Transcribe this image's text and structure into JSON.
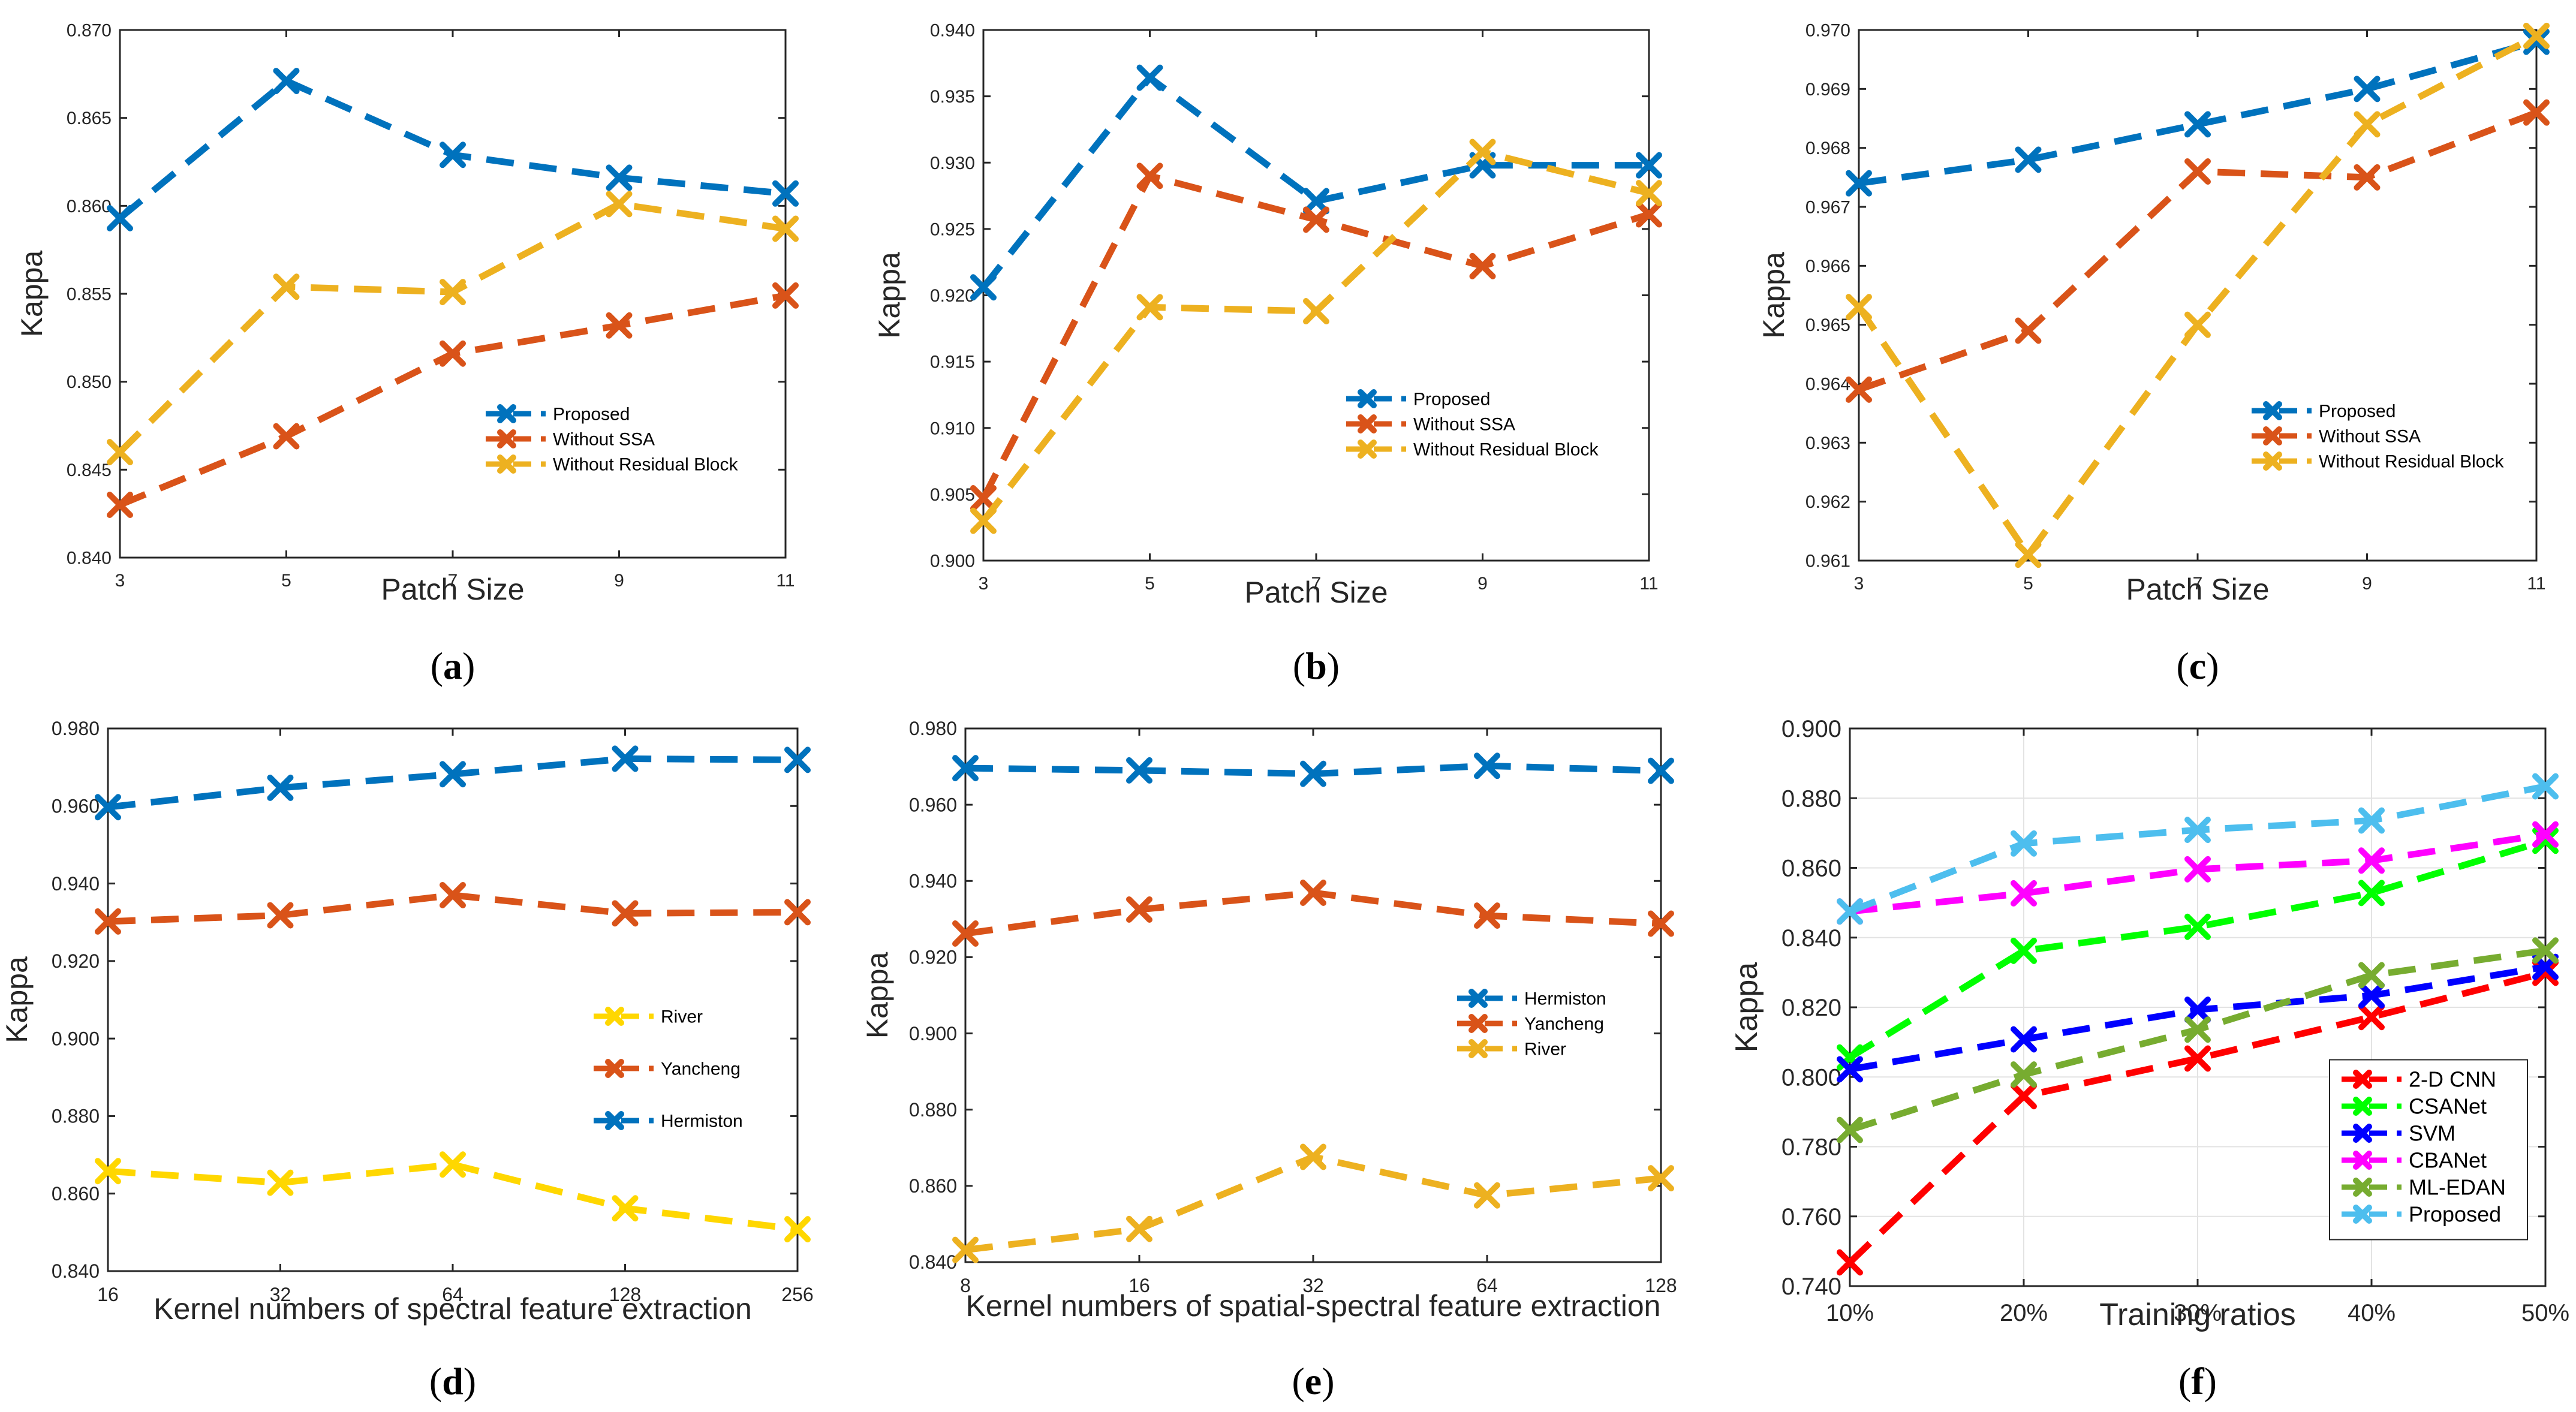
{
  "chart_data": [
    {
      "id": "a",
      "type": "line",
      "panel_label": "(a)",
      "panel_letter": "a",
      "xlabel": "Patch Size",
      "ylabel": "Kappa",
      "categories": [
        "3",
        "5",
        "7",
        "9",
        "11"
      ],
      "ylim": [
        0.84,
        0.87
      ],
      "yticks": [
        "0.840",
        "0.845",
        "0.850",
        "0.855",
        "0.860",
        "0.865",
        "0.870"
      ],
      "legend_position": "lower-right",
      "series": [
        {
          "name": "Proposed",
          "color": "#0072BD",
          "values": [
            0.8593,
            0.8671,
            0.8629,
            0.8616,
            0.8607
          ]
        },
        {
          "name": "Without SSA",
          "color": "#D95319",
          "values": [
            0.843,
            0.8469,
            0.8516,
            0.8532,
            0.8549
          ]
        },
        {
          "name": "Without Residual Block",
          "color": "#EDB120",
          "values": [
            0.846,
            0.8554,
            0.8551,
            0.8601,
            0.8587
          ]
        }
      ]
    },
    {
      "id": "b",
      "type": "line",
      "panel_label": "(b)",
      "panel_letter": "b",
      "xlabel": "Patch Size",
      "ylabel": "Kappa",
      "categories": [
        "3",
        "5",
        "7",
        "9",
        "11"
      ],
      "ylim": [
        0.9,
        0.94
      ],
      "yticks": [
        "0.900",
        "0.905",
        "0.910",
        "0.915",
        "0.920",
        "0.925",
        "0.930",
        "0.935",
        "0.940"
      ],
      "legend_position": "lower-right",
      "series": [
        {
          "name": "Proposed",
          "color": "#0072BD",
          "values": [
            0.9206,
            0.9364,
            0.9271,
            0.9298,
            0.9298
          ]
        },
        {
          "name": "Without SSA",
          "color": "#D95319",
          "values": [
            0.9047,
            0.929,
            0.9257,
            0.9222,
            0.9261
          ]
        },
        {
          "name": "Without Residual Block",
          "color": "#EDB120",
          "values": [
            0.903,
            0.9191,
            0.9188,
            0.9308,
            0.9277
          ]
        }
      ]
    },
    {
      "id": "c",
      "type": "line",
      "panel_label": "(c)",
      "panel_letter": "c",
      "xlabel": "Patch Size",
      "ylabel": "Kappa",
      "categories": [
        "3",
        "5",
        "7",
        "9",
        "11"
      ],
      "ylim": [
        0.961,
        0.97
      ],
      "yticks": [
        "0.961",
        "0.962",
        "0.963",
        "0.964",
        "0.965",
        "0.966",
        "0.967",
        "0.968",
        "0.969",
        "0.970"
      ],
      "legend_position": "lower-right",
      "series": [
        {
          "name": "Proposed",
          "color": "#0072BD",
          "values": [
            0.9674,
            0.9678,
            0.9684,
            0.969,
            0.9698
          ]
        },
        {
          "name": "Without SSA",
          "color": "#D95319",
          "values": [
            0.9639,
            0.9649,
            0.9676,
            0.9675,
            0.9686
          ]
        },
        {
          "name": "Without Residual Block",
          "color": "#EDB120",
          "values": [
            0.9653,
            0.9611,
            0.965,
            0.9684,
            0.9699
          ]
        }
      ]
    },
    {
      "id": "d",
      "type": "line",
      "panel_label": "(d)",
      "panel_letter": "d",
      "xlabel": "Kernel numbers of spectral feature extraction",
      "ylabel": "Kappa",
      "categories": [
        "16",
        "32",
        "64",
        "128",
        "256"
      ],
      "ylim": [
        0.84,
        0.98
      ],
      "yticks": [
        "0.840",
        "0.860",
        "0.880",
        "0.900",
        "0.920",
        "0.940",
        "0.960",
        "0.980"
      ],
      "legend_position": "lower-right",
      "series": [
        {
          "name": "River",
          "color": "#FFD700",
          "values": [
            0.8658,
            0.8628,
            0.8675,
            0.8562,
            0.8508
          ]
        },
        {
          "name": "Yancheng",
          "color": "#D95319",
          "values": [
            0.9302,
            0.9318,
            0.937,
            0.9323,
            0.9326
          ]
        },
        {
          "name": "Hermiston",
          "color": "#0072BD",
          "values": [
            0.9597,
            0.9647,
            0.9682,
            0.9722,
            0.9719
          ]
        }
      ]
    },
    {
      "id": "e",
      "type": "line",
      "panel_label": "(e)",
      "panel_letter": "e",
      "xlabel": "Kernel numbers of spatial-spectral feature extraction",
      "ylabel": "Kappa",
      "categories": [
        "8",
        "16",
        "32",
        "64",
        "128"
      ],
      "ylim": [
        0.84,
        0.98
      ],
      "yticks": [
        "0.840",
        "0.860",
        "0.880",
        "0.900",
        "0.920",
        "0.940",
        "0.960",
        "0.980"
      ],
      "legend_position": "center-right",
      "series": [
        {
          "name": "Hermiston",
          "color": "#0072BD",
          "values": [
            0.9696,
            0.969,
            0.9681,
            0.9702,
            0.9689
          ]
        },
        {
          "name": "Yancheng",
          "color": "#D95319",
          "values": [
            0.9262,
            0.9325,
            0.9369,
            0.9309,
            0.9288
          ]
        },
        {
          "name": "River",
          "color": "#EDB120",
          "values": [
            0.8432,
            0.8487,
            0.8676,
            0.8575,
            0.862
          ]
        }
      ]
    },
    {
      "id": "f",
      "type": "line",
      "panel_label": "(f)",
      "panel_letter": "f",
      "xlabel": "Training ratios",
      "ylabel": "Kappa",
      "categories": [
        "10%",
        "20%",
        "30%",
        "40%",
        "50%"
      ],
      "ylim": [
        0.74,
        0.9
      ],
      "yticks": [
        "0.740",
        "0.760",
        "0.780",
        "0.800",
        "0.820",
        "0.840",
        "0.860",
        "0.880",
        "0.900"
      ],
      "grid": true,
      "legend_position": "lower-right",
      "series": [
        {
          "name": "2-D CNN",
          "color": "#FF0000",
          "values": [
            0.7468,
            0.7945,
            0.8053,
            0.8172,
            0.8299
          ]
        },
        {
          "name": "CSANet",
          "color": "#00FF00",
          "values": [
            0.8056,
            0.8362,
            0.8431,
            0.8528,
            0.8678
          ]
        },
        {
          "name": "SVM",
          "color": "#0000FF",
          "values": [
            0.8022,
            0.8108,
            0.8193,
            0.8234,
            0.8316
          ]
        },
        {
          "name": "CBANet",
          "color": "#FF00FF",
          "values": [
            0.8475,
            0.8527,
            0.8596,
            0.8621,
            0.8696
          ]
        },
        {
          "name": "ML-EDAN",
          "color": "#77AC30",
          "values": [
            0.7848,
            0.8007,
            0.8136,
            0.8292,
            0.8363
          ]
        },
        {
          "name": "Proposed",
          "color": "#4DBEEE",
          "values": [
            0.8475,
            0.867,
            0.8709,
            0.8736,
            0.8834
          ]
        }
      ]
    }
  ]
}
